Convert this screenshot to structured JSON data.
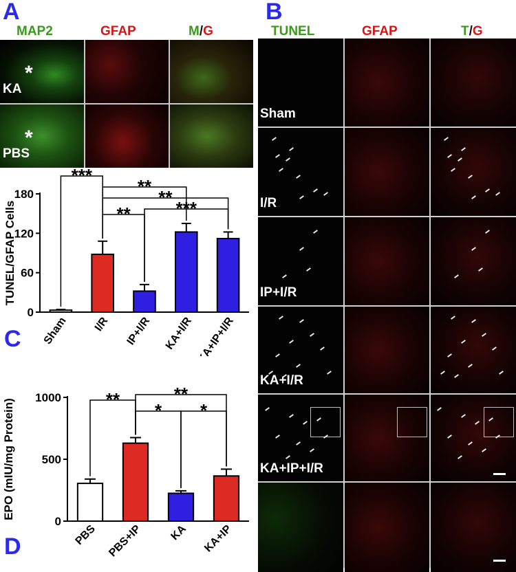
{
  "panelA": {
    "letter": "A",
    "headers": {
      "map2": "MAP2",
      "gfap": "GFAP",
      "merge_m": "M",
      "merge_slash": "/",
      "merge_g": "G"
    },
    "rows": [
      {
        "label": "KA",
        "star": "*"
      },
      {
        "label": "PBS",
        "star": "*"
      }
    ]
  },
  "panelB": {
    "letter": "B",
    "headers": {
      "tunel": "TUNEL",
      "gfap": "GFAP",
      "merge_t": "T",
      "merge_slash": "/",
      "merge_g": "G"
    },
    "rows": [
      "Sham",
      "I/R",
      "IP+I/R",
      "KA+I/R",
      "KA+IP+I/R",
      ""
    ]
  },
  "panelC": {
    "letter": "C"
  },
  "panelD": {
    "letter": "D"
  },
  "chart_data": [
    {
      "type": "bar",
      "panel": "C",
      "ylabel": "TUNEL/GFAP Cells",
      "ylim": [
        0,
        180
      ],
      "yticks": [
        0,
        60,
        120,
        180
      ],
      "categories": [
        "Sham",
        "I/R",
        "IP+I/R",
        "KA+I/R",
        "KA+IP+I/R"
      ],
      "values": [
        3,
        88,
        32,
        122,
        112
      ],
      "errors": [
        1,
        20,
        10,
        13,
        10
      ],
      "colors": [
        "#ffffff",
        "#dd2a22",
        "#2f1fe0",
        "#2f1fe0",
        "#2f1fe0"
      ],
      "significance": [
        {
          "from": 0,
          "to": 1,
          "label": "***"
        },
        {
          "from": 1,
          "to": 2,
          "label": "**"
        },
        {
          "from": 1,
          "to": 3,
          "label": "**"
        },
        {
          "from": 1,
          "to": 4,
          "label": "**"
        },
        {
          "from": 2,
          "to": 4,
          "label": "***"
        }
      ]
    },
    {
      "type": "bar",
      "panel": "D",
      "ylabel": "EPO (mIU/mg Protein)",
      "ylim": [
        0,
        1000
      ],
      "yticks": [
        0,
        500,
        1000
      ],
      "categories": [
        "PBS",
        "PBS+IP",
        "KA",
        "KA+IP"
      ],
      "values": [
        305,
        630,
        225,
        365
      ],
      "errors": [
        35,
        45,
        20,
        55
      ],
      "colors": [
        "#ffffff",
        "#dd2a22",
        "#2f1fe0",
        "#dd2a22"
      ],
      "significance": [
        {
          "from": 0,
          "to": 1,
          "label": "**"
        },
        {
          "from": 1,
          "to": 2,
          "label": "*"
        },
        {
          "from": 1,
          "to": 3,
          "label": "**"
        },
        {
          "from": 2,
          "to": 3,
          "label": "*"
        }
      ]
    }
  ]
}
